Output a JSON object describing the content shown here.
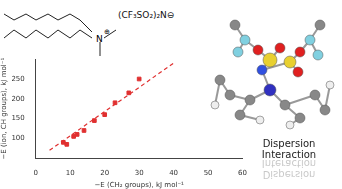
{
  "chart_data": {
    "type": "scatter",
    "x_label": "−E (CH₂ groups), kJ mol⁻¹",
    "y_label": "−E (ion, CH groups), kJ mol⁻¹",
    "xlim": [
      0,
      60
    ],
    "xticks": [
      0,
      10,
      20,
      30,
      40,
      50,
      60
    ],
    "ylim": [
      50,
      300
    ],
    "yticks": [
      100,
      150,
      200,
      250
    ],
    "grid": false,
    "series": [
      {
        "type": "scatter",
        "color": "#e03030",
        "marker": "square",
        "x": [
          8,
          9,
          11,
          12,
          14,
          17,
          20,
          23,
          27,
          30
        ],
        "values": [
          90,
          85,
          105,
          110,
          120,
          145,
          160,
          190,
          215,
          250
        ]
      },
      {
        "type": "line",
        "color": "#e03030",
        "line_style": "dashed",
        "marker": "none",
        "x": [
          4,
          40
        ],
        "values": [
          70,
          290
        ]
      }
    ]
  },
  "structure": {
    "cation_atom": "N",
    "cation_charge": "⊕",
    "anion": "(CF₃SO₂)₂N⊖"
  },
  "caption": "Dispersion Interaction"
}
